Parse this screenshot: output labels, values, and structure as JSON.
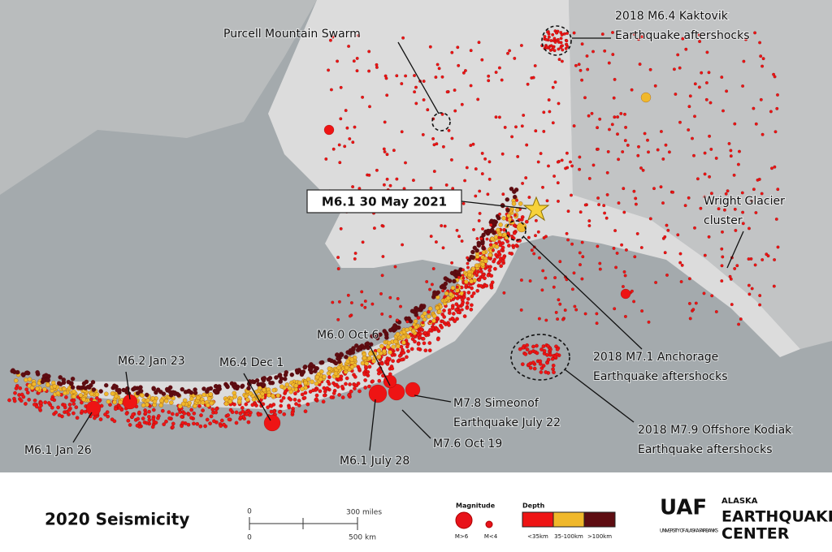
{
  "map": {
    "highlight": "M6.1  30 May 2021",
    "annotations": [
      {
        "lines": [
          "Purcell Mountain Swarm"
        ]
      },
      {
        "lines": [
          "2018 M6.4 Kaktovik",
          "Earthquake aftershocks"
        ]
      },
      {
        "lines": [
          "Wright Glacier",
          "cluster"
        ]
      },
      {
        "lines": [
          "2018 M7.1 Anchorage",
          "Earthquake aftershocks"
        ]
      },
      {
        "lines": [
          "2018 M7.9 Offshore Kodiak",
          "Earthquake aftershocks"
        ]
      },
      {
        "lines": [
          "M6.2 Jan 23"
        ]
      },
      {
        "lines": [
          "M6.4 Dec 1"
        ]
      },
      {
        "lines": [
          "M6.0 Oct 6"
        ]
      },
      {
        "lines": [
          "M7.8 Simeonof",
          "Earthquake July 22"
        ]
      },
      {
        "lines": [
          "M7.6 Oct 19"
        ]
      },
      {
        "lines": [
          "M6.1 July 28"
        ]
      },
      {
        "lines": [
          "M6.1 Jan 26"
        ]
      }
    ]
  },
  "footer": {
    "title": "2020 Seismicity",
    "scale": {
      "miles_zero": "0",
      "miles": "300 miles",
      "km_zero": "0",
      "km": "500 km"
    },
    "magnitude": {
      "title": "Magnitude",
      "large": "M>6",
      "small": "M<4"
    },
    "depth": {
      "title": "Depth",
      "items": [
        "<35km",
        "35-100km",
        ">100km"
      ]
    },
    "logo": {
      "mark": "UAF",
      "line1": "ALASKA",
      "line2": "EARTHQUAKE",
      "line3": "CENTER",
      "university": "UNIVERSITY OF ALASKA FAIRBANKS"
    }
  }
}
